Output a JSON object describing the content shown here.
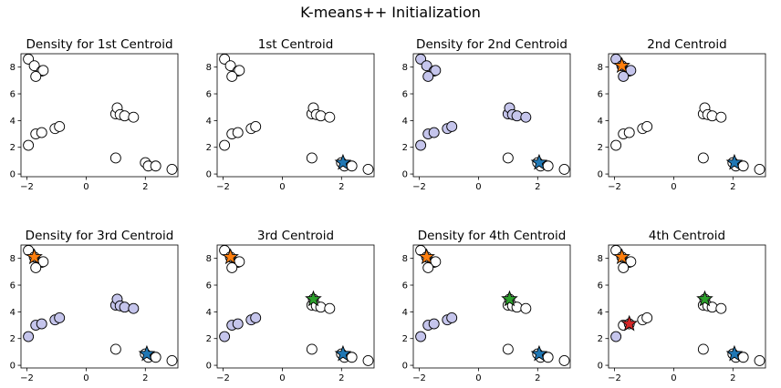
{
  "suptitle": "K-means++ Initialization",
  "colors": {
    "hollow": "#ffffff",
    "density_fill": "#c5c5ec",
    "star_colors": [
      "#1f77b4",
      "#ff7f0e",
      "#2ca02c",
      "#d62728"
    ]
  },
  "chart_data": [
    {
      "type": "scatter",
      "title": "Density for 1st Centroid",
      "xlim": [
        -2.2,
        3.1
      ],
      "ylim": [
        -0.2,
        9.0
      ],
      "xticks": [
        -2,
        0,
        2
      ],
      "yticks": [
        0,
        2,
        4,
        6,
        8
      ],
      "points": [
        [
          -1.95,
          8.6
        ],
        [
          -1.75,
          8.1
        ],
        [
          -1.5,
          7.7
        ],
        [
          -1.45,
          7.75
        ],
        [
          -1.7,
          7.3
        ],
        [
          -1.95,
          2.15
        ],
        [
          -1.7,
          3.0
        ],
        [
          -1.5,
          3.1
        ],
        [
          -1.05,
          3.4
        ],
        [
          -0.9,
          3.55
        ],
        [
          1.0,
          4.5
        ],
        [
          1.05,
          4.95
        ],
        [
          1.15,
          4.45
        ],
        [
          1.3,
          4.35
        ],
        [
          1.6,
          4.25
        ],
        [
          1.0,
          1.2
        ],
        [
          2.0,
          0.85
        ],
        [
          2.1,
          0.6
        ],
        [
          2.35,
          0.6
        ],
        [
          2.9,
          0.35
        ]
      ],
      "highlighted": [],
      "centroids": []
    },
    {
      "type": "scatter",
      "title": "1st Centroid",
      "xlim": [
        -2.2,
        3.1
      ],
      "ylim": [
        -0.2,
        9.0
      ],
      "xticks": [
        -2,
        0,
        2
      ],
      "yticks": [
        0,
        2,
        4,
        6,
        8
      ],
      "points": [
        [
          -1.95,
          8.6
        ],
        [
          -1.75,
          8.1
        ],
        [
          -1.5,
          7.7
        ],
        [
          -1.45,
          7.75
        ],
        [
          -1.7,
          7.3
        ],
        [
          -1.95,
          2.15
        ],
        [
          -1.7,
          3.0
        ],
        [
          -1.5,
          3.1
        ],
        [
          -1.05,
          3.4
        ],
        [
          -0.9,
          3.55
        ],
        [
          1.0,
          4.5
        ],
        [
          1.05,
          4.95
        ],
        [
          1.15,
          4.45
        ],
        [
          1.3,
          4.35
        ],
        [
          1.6,
          4.25
        ],
        [
          1.0,
          1.2
        ],
        [
          2.0,
          0.85
        ],
        [
          2.1,
          0.6
        ],
        [
          2.35,
          0.6
        ],
        [
          2.9,
          0.35
        ]
      ],
      "highlighted": [],
      "centroids": [
        [
          2.05,
          0.85
        ]
      ]
    },
    {
      "type": "scatter",
      "title": "Density for 2nd Centroid",
      "xlim": [
        -2.2,
        3.1
      ],
      "ylim": [
        -0.2,
        9.0
      ],
      "xticks": [
        -2,
        0,
        2
      ],
      "yticks": [
        0,
        2,
        4,
        6,
        8
      ],
      "points": [
        [
          -1.95,
          8.6
        ],
        [
          -1.75,
          8.1
        ],
        [
          -1.5,
          7.7
        ],
        [
          -1.45,
          7.75
        ],
        [
          -1.7,
          7.3
        ],
        [
          -1.95,
          2.15
        ],
        [
          -1.7,
          3.0
        ],
        [
          -1.5,
          3.1
        ],
        [
          -1.05,
          3.4
        ],
        [
          -0.9,
          3.55
        ],
        [
          1.0,
          4.5
        ],
        [
          1.05,
          4.95
        ],
        [
          1.15,
          4.45
        ],
        [
          1.3,
          4.35
        ],
        [
          1.6,
          4.25
        ],
        [
          1.0,
          1.2
        ],
        [
          2.0,
          0.85
        ],
        [
          2.1,
          0.6
        ],
        [
          2.35,
          0.6
        ],
        [
          2.9,
          0.35
        ]
      ],
      "highlighted": [
        0,
        1,
        2,
        3,
        4,
        5,
        6,
        7,
        8,
        9,
        10,
        11,
        12,
        13,
        14
      ],
      "centroids": [
        [
          2.05,
          0.85
        ]
      ]
    },
    {
      "type": "scatter",
      "title": "2nd Centroid",
      "xlim": [
        -2.2,
        3.1
      ],
      "ylim": [
        -0.2,
        9.0
      ],
      "xticks": [
        -2,
        0,
        2
      ],
      "yticks": [
        0,
        2,
        4,
        6,
        8
      ],
      "points": [
        [
          -1.95,
          8.6
        ],
        [
          -1.75,
          8.1
        ],
        [
          -1.5,
          7.7
        ],
        [
          -1.45,
          7.75
        ],
        [
          -1.7,
          7.3
        ],
        [
          -1.95,
          2.15
        ],
        [
          -1.7,
          3.0
        ],
        [
          -1.5,
          3.1
        ],
        [
          -1.05,
          3.4
        ],
        [
          -0.9,
          3.55
        ],
        [
          1.0,
          4.5
        ],
        [
          1.05,
          4.95
        ],
        [
          1.15,
          4.45
        ],
        [
          1.3,
          4.35
        ],
        [
          1.6,
          4.25
        ],
        [
          1.0,
          1.2
        ],
        [
          2.0,
          0.85
        ],
        [
          2.1,
          0.6
        ],
        [
          2.35,
          0.6
        ],
        [
          2.9,
          0.35
        ]
      ],
      "highlighted": [
        0,
        1,
        2,
        3,
        4
      ],
      "centroids": [
        [
          2.05,
          0.85
        ],
        [
          -1.75,
          8.1
        ]
      ]
    },
    {
      "type": "scatter",
      "title": "Density for 3rd Centroid",
      "xlim": [
        -2.2,
        3.1
      ],
      "ylim": [
        -0.2,
        9.0
      ],
      "xticks": [
        -2,
        0,
        2
      ],
      "yticks": [
        0,
        2,
        4,
        6,
        8
      ],
      "points": [
        [
          -1.95,
          8.6
        ],
        [
          -1.75,
          8.1
        ],
        [
          -1.5,
          7.7
        ],
        [
          -1.45,
          7.75
        ],
        [
          -1.7,
          7.3
        ],
        [
          -1.95,
          2.15
        ],
        [
          -1.7,
          3.0
        ],
        [
          -1.5,
          3.1
        ],
        [
          -1.05,
          3.4
        ],
        [
          -0.9,
          3.55
        ],
        [
          1.0,
          4.5
        ],
        [
          1.05,
          4.95
        ],
        [
          1.15,
          4.45
        ],
        [
          1.3,
          4.35
        ],
        [
          1.6,
          4.25
        ],
        [
          1.0,
          1.2
        ],
        [
          2.0,
          0.85
        ],
        [
          2.1,
          0.6
        ],
        [
          2.35,
          0.6
        ],
        [
          2.9,
          0.35
        ]
      ],
      "highlighted": [
        5,
        6,
        7,
        8,
        9,
        10,
        11,
        12,
        13,
        14
      ],
      "centroids": [
        [
          2.05,
          0.85
        ],
        [
          -1.75,
          8.1
        ]
      ]
    },
    {
      "type": "scatter",
      "title": "3rd Centroid",
      "xlim": [
        -2.2,
        3.1
      ],
      "ylim": [
        -0.2,
        9.0
      ],
      "xticks": [
        -2,
        0,
        2
      ],
      "yticks": [
        0,
        2,
        4,
        6,
        8
      ],
      "points": [
        [
          -1.95,
          8.6
        ],
        [
          -1.75,
          8.1
        ],
        [
          -1.5,
          7.7
        ],
        [
          -1.45,
          7.75
        ],
        [
          -1.7,
          7.3
        ],
        [
          -1.95,
          2.15
        ],
        [
          -1.7,
          3.0
        ],
        [
          -1.5,
          3.1
        ],
        [
          -1.05,
          3.4
        ],
        [
          -0.9,
          3.55
        ],
        [
          1.0,
          4.5
        ],
        [
          1.05,
          4.95
        ],
        [
          1.15,
          4.45
        ],
        [
          1.3,
          4.35
        ],
        [
          1.6,
          4.25
        ],
        [
          1.0,
          1.2
        ],
        [
          2.0,
          0.85
        ],
        [
          2.1,
          0.6
        ],
        [
          2.35,
          0.6
        ],
        [
          2.9,
          0.35
        ]
      ],
      "highlighted": [
        5,
        6,
        7,
        8,
        9
      ],
      "centroids": [
        [
          2.05,
          0.85
        ],
        [
          -1.75,
          8.1
        ],
        [
          1.05,
          4.95
        ]
      ]
    },
    {
      "type": "scatter",
      "title": "Density for 4th Centroid",
      "xlim": [
        -2.2,
        3.1
      ],
      "ylim": [
        -0.2,
        9.0
      ],
      "xticks": [
        -2,
        0,
        2
      ],
      "yticks": [
        0,
        2,
        4,
        6,
        8
      ],
      "points": [
        [
          -1.95,
          8.6
        ],
        [
          -1.75,
          8.1
        ],
        [
          -1.5,
          7.7
        ],
        [
          -1.45,
          7.75
        ],
        [
          -1.7,
          7.3
        ],
        [
          -1.95,
          2.15
        ],
        [
          -1.7,
          3.0
        ],
        [
          -1.5,
          3.1
        ],
        [
          -1.05,
          3.4
        ],
        [
          -0.9,
          3.55
        ],
        [
          1.0,
          4.5
        ],
        [
          1.05,
          4.95
        ],
        [
          1.15,
          4.45
        ],
        [
          1.3,
          4.35
        ],
        [
          1.6,
          4.25
        ],
        [
          1.0,
          1.2
        ],
        [
          2.0,
          0.85
        ],
        [
          2.1,
          0.6
        ],
        [
          2.35,
          0.6
        ],
        [
          2.9,
          0.35
        ]
      ],
      "highlighted": [
        5,
        6,
        7,
        8,
        9
      ],
      "centroids": [
        [
          2.05,
          0.85
        ],
        [
          -1.75,
          8.1
        ],
        [
          1.05,
          4.95
        ]
      ]
    },
    {
      "type": "scatter",
      "title": "4th Centroid",
      "xlim": [
        -2.2,
        3.1
      ],
      "ylim": [
        -0.2,
        9.0
      ],
      "xticks": [
        -2,
        0,
        2
      ],
      "yticks": [
        0,
        2,
        4,
        6,
        8
      ],
      "points": [
        [
          -1.95,
          8.6
        ],
        [
          -1.75,
          8.1
        ],
        [
          -1.5,
          7.7
        ],
        [
          -1.45,
          7.75
        ],
        [
          -1.7,
          7.3
        ],
        [
          -1.95,
          2.15
        ],
        [
          -1.7,
          3.0
        ],
        [
          -1.5,
          3.1
        ],
        [
          -1.05,
          3.4
        ],
        [
          -0.9,
          3.55
        ],
        [
          1.0,
          4.5
        ],
        [
          1.05,
          4.95
        ],
        [
          1.15,
          4.45
        ],
        [
          1.3,
          4.35
        ],
        [
          1.6,
          4.25
        ],
        [
          1.0,
          1.2
        ],
        [
          2.0,
          0.85
        ],
        [
          2.1,
          0.6
        ],
        [
          2.35,
          0.6
        ],
        [
          2.9,
          0.35
        ]
      ],
      "highlighted": [
        5
      ],
      "centroids": [
        [
          2.05,
          0.85
        ],
        [
          -1.75,
          8.1
        ],
        [
          1.05,
          4.95
        ],
        [
          -1.5,
          3.1
        ]
      ]
    }
  ]
}
